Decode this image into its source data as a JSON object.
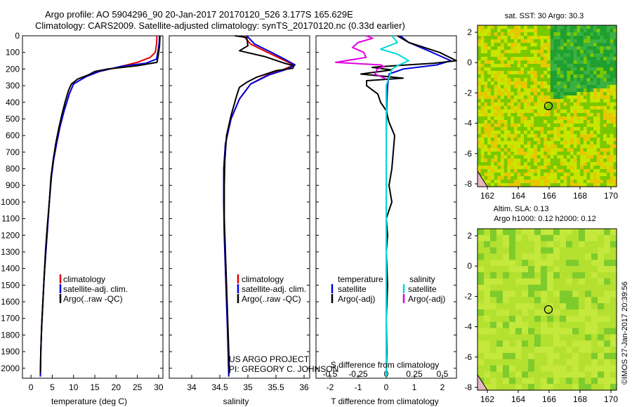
{
  "header": {
    "line1": "Argo profile: AO 5904296_90 20-Jan-2017 20170120_526 3.177S 165.629E",
    "line2": "Climatology: CARS2009. Satellite-adjusted climatology: synTS_20170120.nc (0.33d earlier)"
  },
  "chart_data": [
    {
      "type": "line",
      "title": "",
      "xlabel": "temperature (deg C)",
      "ylabel": "",
      "xlim": [
        -2,
        31
      ],
      "ylim": [
        2060,
        0
      ],
      "xticks": [
        0,
        5,
        10,
        15,
        20,
        25,
        30
      ],
      "yticks": [
        0,
        100,
        200,
        300,
        400,
        500,
        600,
        700,
        800,
        900,
        1000,
        1100,
        1200,
        1300,
        1400,
        1500,
        1600,
        1700,
        1800,
        1900,
        2000
      ],
      "legend": [
        "climatology",
        "satellite-adj. clim.",
        "Argo(..raw -QC)"
      ],
      "series": [
        {
          "name": "climatology",
          "color": "#e00000",
          "points": [
            [
              29.6,
              0
            ],
            [
              29.5,
              50
            ],
            [
              29.2,
              100
            ],
            [
              28,
              130
            ],
            [
              25,
              160
            ],
            [
              21,
              185
            ],
            [
              16,
              215
            ],
            [
              13,
              245
            ],
            [
              10,
              290
            ],
            [
              9,
              350
            ],
            [
              7.8,
              450
            ],
            [
              6.8,
              550
            ],
            [
              6,
              650
            ],
            [
              5.3,
              750
            ],
            [
              4.8,
              850
            ],
            [
              4.3,
              1000
            ],
            [
              3.9,
              1150
            ],
            [
              3.5,
              1300
            ],
            [
              3.1,
              1450
            ],
            [
              2.8,
              1600
            ],
            [
              2.5,
              1750
            ],
            [
              2.3,
              1900
            ],
            [
              2.2,
              2050
            ]
          ]
        },
        {
          "name": "satellite-adj. clim.",
          "color": "#0000e0",
          "points": [
            [
              30.2,
              0
            ],
            [
              30.1,
              50
            ],
            [
              29.8,
              100
            ],
            [
              29.5,
              140
            ],
            [
              27,
              165
            ],
            [
              21,
              185
            ],
            [
              16,
              215
            ],
            [
              13,
              245
            ],
            [
              10,
              290
            ],
            [
              9,
              350
            ],
            [
              7.8,
              450
            ],
            [
              6.8,
              550
            ],
            [
              6,
              650
            ],
            [
              5.3,
              750
            ],
            [
              4.8,
              850
            ],
            [
              4.3,
              1000
            ],
            [
              3.9,
              1150
            ],
            [
              3.5,
              1300
            ],
            [
              3.1,
              1450
            ],
            [
              2.8,
              1600
            ],
            [
              2.5,
              1750
            ],
            [
              2.3,
              1900
            ],
            [
              2.2,
              2050
            ]
          ]
        },
        {
          "name": "Argo(..raw -QC)",
          "color": "#000000",
          "points": [
            [
              30.3,
              0
            ],
            [
              30.2,
              60
            ],
            [
              29.9,
              120
            ],
            [
              29.6,
              160
            ],
            [
              25,
              180
            ],
            [
              18,
              200
            ],
            [
              15,
              215
            ],
            [
              13.5,
              235
            ],
            [
              11,
              260
            ],
            [
              9.5,
              290
            ],
            [
              8.8,
              330
            ],
            [
              8,
              400
            ],
            [
              7.2,
              480
            ],
            [
              6.5,
              560
            ],
            [
              5.8,
              650
            ],
            [
              5.2,
              750
            ],
            [
              4.7,
              850
            ],
            [
              4.3,
              1000
            ],
            [
              3.8,
              1150
            ],
            [
              3.4,
              1300
            ],
            [
              3.1,
              1450
            ],
            [
              2.8,
              1600
            ],
            [
              2.5,
              1750
            ],
            [
              2.3,
              1900
            ],
            [
              2.2,
              2030
            ]
          ]
        }
      ]
    },
    {
      "type": "line",
      "title": "",
      "xlabel": "salinity",
      "ylabel": "",
      "xlim": [
        33.6,
        36.1
      ],
      "ylim": [
        2060,
        0
      ],
      "xticks": [
        34,
        34.5,
        35,
        35.5,
        36
      ],
      "legend": [
        "climatology",
        "satellite-adj. clim.",
        "Argo(..raw -QC)"
      ],
      "annotation": [
        "US ARGO PROJECT",
        "PI: GREGORY C. JOHNSON"
      ],
      "series": [
        {
          "name": "climatology",
          "color": "#e00000",
          "points": [
            [
              34.92,
              0
            ],
            [
              35.05,
              50
            ],
            [
              35.35,
              100
            ],
            [
              35.6,
              140
            ],
            [
              35.82,
              175
            ],
            [
              35.62,
              205
            ],
            [
              35.35,
              235
            ],
            [
              35.05,
              290
            ],
            [
              34.85,
              380
            ],
            [
              34.7,
              500
            ],
            [
              34.6,
              650
            ],
            [
              34.57,
              800
            ],
            [
              34.57,
              1000
            ],
            [
              34.58,
              1200
            ],
            [
              34.6,
              1400
            ],
            [
              34.62,
              1600
            ],
            [
              34.64,
              1800
            ],
            [
              34.66,
              2050
            ]
          ]
        },
        {
          "name": "satellite-adj. clim.",
          "color": "#0000e0",
          "points": [
            [
              34.98,
              0
            ],
            [
              35.12,
              50
            ],
            [
              35.42,
              100
            ],
            [
              35.65,
              140
            ],
            [
              35.84,
              175
            ],
            [
              35.66,
              205
            ],
            [
              35.38,
              235
            ],
            [
              35.05,
              290
            ],
            [
              34.85,
              380
            ],
            [
              34.7,
              500
            ],
            [
              34.6,
              650
            ],
            [
              34.57,
              800
            ],
            [
              34.57,
              1000
            ],
            [
              34.58,
              1200
            ],
            [
              34.6,
              1400
            ],
            [
              34.62,
              1600
            ],
            [
              34.64,
              1800
            ],
            [
              34.66,
              2050
            ]
          ]
        },
        {
          "name": "Argo(..raw -QC)",
          "color": "#000000",
          "points": [
            [
              34.77,
              0
            ],
            [
              34.98,
              10
            ],
            [
              35.0,
              60
            ],
            [
              34.85,
              90
            ],
            [
              35.3,
              125
            ],
            [
              35.65,
              165
            ],
            [
              35.82,
              180
            ],
            [
              35.8,
              195
            ],
            [
              35.5,
              210
            ],
            [
              35.15,
              250
            ],
            [
              34.98,
              280
            ],
            [
              34.85,
              310
            ],
            [
              34.8,
              360
            ],
            [
              34.7,
              480
            ],
            [
              34.62,
              600
            ],
            [
              34.59,
              750
            ],
            [
              34.58,
              900
            ],
            [
              34.58,
              1100
            ],
            [
              34.6,
              1300
            ],
            [
              34.62,
              1500
            ],
            [
              34.64,
              1700
            ],
            [
              34.66,
              1900
            ],
            [
              34.67,
              2030
            ]
          ]
        }
      ]
    },
    {
      "type": "line",
      "title": "",
      "xlabel": "T difference from climatology",
      "xlabel2": "S difference from climatology",
      "ylabel": "",
      "xlim": [
        -2.5,
        2.5
      ],
      "ylim": [
        2060,
        0
      ],
      "xticks": [
        -2,
        -1,
        0,
        1,
        2
      ],
      "xticks_top": [
        -0.5,
        -0.25,
        0,
        0.25,
        0.5
      ],
      "legend_titles": [
        "temperature",
        "salinity"
      ],
      "legend": [
        "satellite",
        "Argo(-adj)",
        "satellite",
        "Argo(-adj)"
      ],
      "series": [
        {
          "name": "temperature satellite",
          "color": "#0000e0",
          "points": [
            [
              0.5,
              0
            ],
            [
              0.8,
              40
            ],
            [
              1.5,
              90
            ],
            [
              2.3,
              150
            ],
            [
              1.8,
              175
            ],
            [
              0.6,
              200
            ],
            [
              0.1,
              230
            ],
            [
              0.05,
              300
            ],
            [
              0.02,
              400
            ],
            [
              0.0,
              600
            ],
            [
              0.0,
              2050
            ]
          ]
        },
        {
          "name": "temperature Argo(-adj)",
          "color": "#000000",
          "points": [
            [
              0.4,
              0
            ],
            [
              0.8,
              40
            ],
            [
              1.9,
              100
            ],
            [
              2.5,
              150
            ],
            [
              1.7,
              165
            ],
            [
              0.3,
              180
            ],
            [
              -0.5,
              190
            ],
            [
              0.2,
              205
            ],
            [
              -0.9,
              230
            ],
            [
              0.6,
              255
            ],
            [
              -0.7,
              270
            ],
            [
              -0.7,
              300
            ],
            [
              -0.3,
              350
            ],
            [
              -0.2,
              400
            ],
            [
              0.0,
              450
            ],
            [
              0.1,
              520
            ],
            [
              0.3,
              600
            ],
            [
              0.25,
              700
            ],
            [
              0.2,
              800
            ],
            [
              0.1,
              900
            ],
            [
              0.2,
              1000
            ],
            [
              0.0,
              1100
            ],
            [
              0.05,
              1200
            ],
            [
              0.0,
              1300
            ],
            [
              0.05,
              1500
            ],
            [
              0.0,
              1700
            ],
            [
              0.02,
              1900
            ],
            [
              0.0,
              2030
            ]
          ]
        },
        {
          "name": "salinity satellite",
          "color": "#00d8d8",
          "points": [
            [
              0.05,
              0
            ],
            [
              0.1,
              40
            ],
            [
              -0.05,
              80
            ],
            [
              0.1,
              110
            ],
            [
              0.2,
              150
            ],
            [
              0.1,
              180
            ],
            [
              0.05,
              200
            ],
            [
              0.0,
              300
            ],
            [
              0.0,
              2050
            ]
          ]
        },
        {
          "name": "salinity Argo(-adj)",
          "color": "#e000e0",
          "points": [
            [
              -0.18,
              0
            ],
            [
              -0.12,
              15
            ],
            [
              -0.25,
              40
            ],
            [
              -0.3,
              70
            ],
            [
              -0.2,
              100
            ],
            [
              -0.18,
              130
            ],
            [
              -0.45,
              160
            ],
            [
              -0.05,
              175
            ],
            [
              -0.02,
              185
            ],
            [
              -0.08,
              200
            ],
            [
              -0.1,
              230
            ],
            [
              0.0,
              260
            ]
          ]
        }
      ]
    }
  ],
  "maps": {
    "sst": {
      "title": "sat. SST: 30 Argo: 30.3",
      "xticks": [
        "162",
        "164",
        "166",
        "168",
        "170"
      ],
      "yticks": [
        "2",
        "0",
        "-2",
        "-4",
        "-6",
        "-8"
      ]
    },
    "sla": {
      "title1": "Altim. SLA: 0.13",
      "title2": "Argo h1000: 0.12 h2000: 0.12",
      "xticks": [
        "162",
        "164",
        "166",
        "168",
        "170"
      ],
      "yticks": [
        "2",
        "0",
        "-2",
        "-4",
        "-6",
        "-8"
      ]
    }
  },
  "colors": {
    "map_green": "#7ac800",
    "map_yellow": "#c8e600",
    "map_orange": "#e6c800",
    "map_dark_green": "#1fa030",
    "sla_base": "#b4e030",
    "sla_dark": "#7ecb2c"
  },
  "footer": {
    "credit": "©IMOS 27-Jan-2017 20:39:56"
  }
}
